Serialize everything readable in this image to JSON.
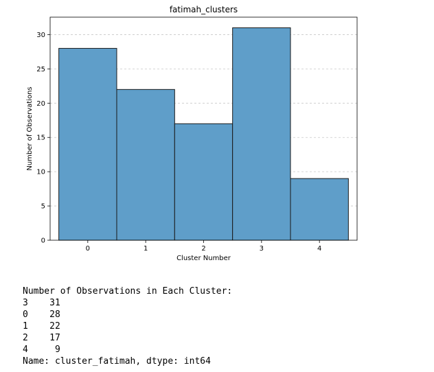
{
  "chart_data": {
    "type": "bar",
    "title": "fatimah_clusters",
    "xlabel": "Cluster Number",
    "ylabel": "Number of Observations",
    "categories": [
      "0",
      "1",
      "2",
      "3",
      "4"
    ],
    "values": [
      28,
      22,
      17,
      31,
      9
    ],
    "ylim": [
      0,
      32.55
    ],
    "yticks": [
      0,
      5,
      10,
      15,
      20,
      25,
      30
    ],
    "grid": "y-dashed",
    "bar_color": "#5f9ec9",
    "edge_color": "#1a1a1a",
    "grid_color": "#c8c8c8"
  },
  "output": {
    "header": "Number of Observations in Each Cluster:",
    "rows": [
      {
        "index": "3",
        "count": "31"
      },
      {
        "index": "0",
        "count": "28"
      },
      {
        "index": "1",
        "count": "22"
      },
      {
        "index": "2",
        "count": "17"
      },
      {
        "index": "4",
        "count": "9"
      }
    ],
    "footer": "Name: cluster_fatimah, dtype: int64"
  }
}
